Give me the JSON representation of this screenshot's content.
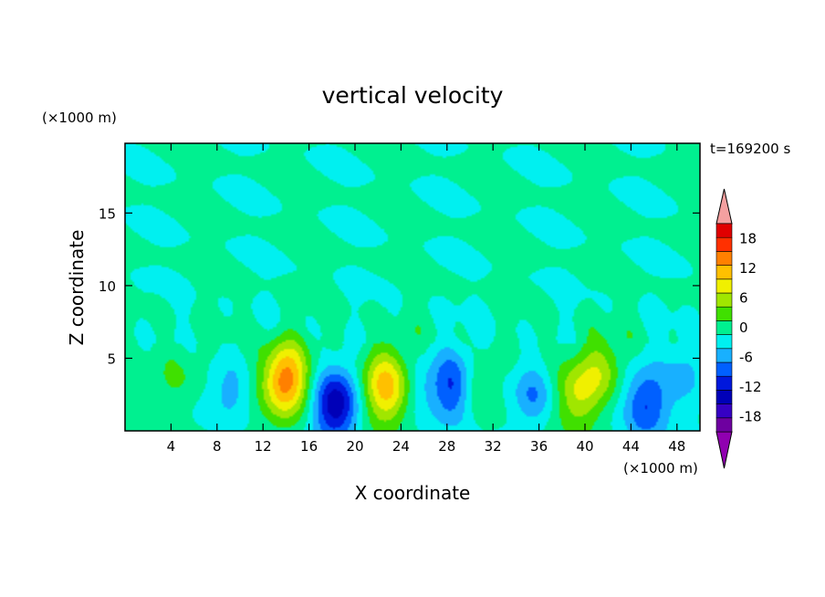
{
  "chart_data": {
    "type": "heatmap",
    "title": "vertical velocity",
    "xlabel": "X coordinate",
    "ylabel": "Z coordinate",
    "x_unit": "(×1000 m)",
    "y_unit": "(×1000 m)",
    "time_label": "t=169200 s",
    "xlim": [
      0,
      50
    ],
    "ylim": [
      0,
      19.8
    ],
    "x_ticks": [
      4,
      8,
      12,
      16,
      20,
      24,
      28,
      32,
      36,
      40,
      44,
      48
    ],
    "y_ticks": [
      5,
      10,
      15
    ],
    "colorbar": {
      "levels": [
        -21,
        -18,
        -15,
        -12,
        -9,
        -6,
        -3,
        0,
        3,
        6,
        9,
        12,
        15,
        18,
        21
      ],
      "tick_labels": [
        "18",
        "12",
        "6",
        "0",
        "-6",
        "-12",
        "-18"
      ],
      "tick_values": [
        18,
        12,
        6,
        0,
        -6,
        -12,
        -18
      ],
      "colors": [
        "#6e00a0",
        "#3600c4",
        "#0000b8",
        "#0018dc",
        "#0060ff",
        "#18b0ff",
        "#00f0f0",
        "#00f090",
        "#40e000",
        "#a0e600",
        "#f0f000",
        "#ffc000",
        "#ff8000",
        "#ff3000",
        "#e00000"
      ],
      "over_color": "#f4a0a0",
      "under_color": "#9000b0"
    },
    "features": [
      {
        "x": 4.5,
        "z": 3.8,
        "w": 3.2
      },
      {
        "x": 14.0,
        "z": 3.5,
        "w": 17
      },
      {
        "x": 18.3,
        "z": 1.8,
        "w": -15
      },
      {
        "x": 22.7,
        "z": 3.0,
        "w": 14
      },
      {
        "x": 28.6,
        "z": 3.0,
        "w": -11
      },
      {
        "x": 30.5,
        "z": 3.0,
        "w": 6
      },
      {
        "x": 35.5,
        "z": 2.5,
        "w": -7
      },
      {
        "x": 39.5,
        "z": 2.6,
        "w": 9
      },
      {
        "x": 41.5,
        "z": 4.3,
        "w": 6
      },
      {
        "x": 45.3,
        "z": 1.8,
        "w": -10
      },
      {
        "x": 9.2,
        "z": 2.8,
        "w": -5
      },
      {
        "x": 25.5,
        "z": 3.0,
        "w": -3
      },
      {
        "x": 48.5,
        "z": 3.8,
        "w": -4
      }
    ]
  }
}
